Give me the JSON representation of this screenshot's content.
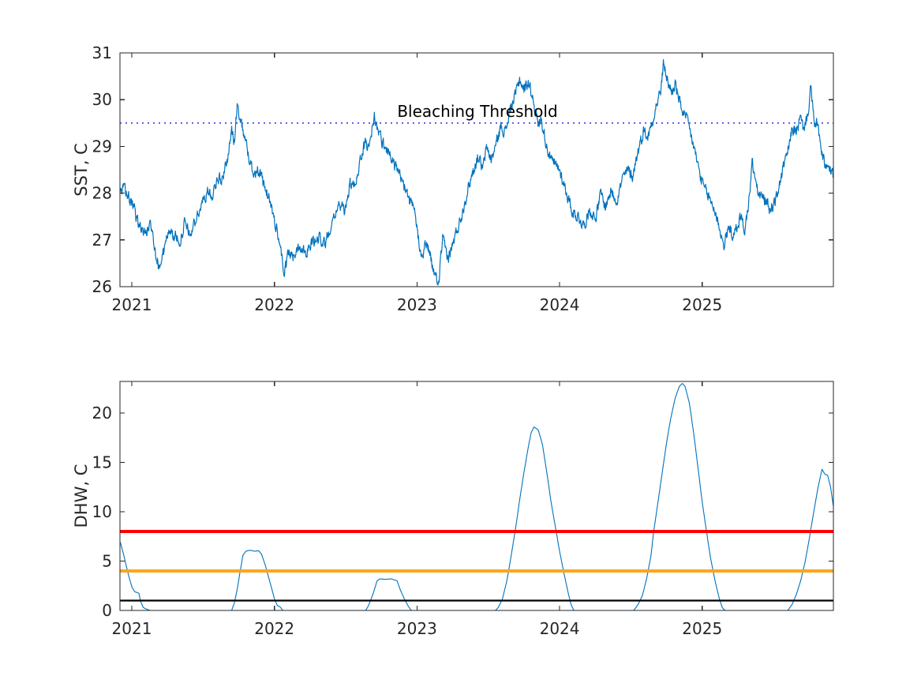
{
  "figure": {
    "background": "#ffffff",
    "axis_color": "#262626",
    "annotation": {
      "text": "Bleaching Threshold",
      "color": "#000000"
    }
  },
  "chart_data": [
    {
      "type": "line",
      "panel": "top",
      "title": "",
      "xlabel": "",
      "ylabel": "SST, C",
      "xlim": [
        2020.917,
        2025.92
      ],
      "ylim": [
        26,
        31
      ],
      "xticks": [
        2021,
        2022,
        2023,
        2024,
        2025
      ],
      "xtick_labels": [
        "2021",
        "2022",
        "2023",
        "2024",
        "2025"
      ],
      "yticks": [
        26,
        27,
        28,
        29,
        30,
        31
      ],
      "grid": false,
      "reference_lines": [
        {
          "name": "bleaching-threshold",
          "value": 29.5,
          "color": "#3b3bf0",
          "style": "dotted",
          "width": 1.6,
          "layer": "under",
          "label": "Bleaching Threshold"
        }
      ],
      "series": [
        {
          "name": "SST",
          "color": "#0072BD",
          "width": 1.2,
          "noise_amplitude": 0.11,
          "anchors": [
            [
              2020.92,
              28.0
            ],
            [
              2020.95,
              28.1
            ],
            [
              2020.98,
              27.9
            ],
            [
              2021.02,
              27.6
            ],
            [
              2021.06,
              27.25
            ],
            [
              2021.1,
              27.15
            ],
            [
              2021.13,
              27.35
            ],
            [
              2021.16,
              26.9
            ],
            [
              2021.19,
              26.4
            ],
            [
              2021.23,
              26.8
            ],
            [
              2021.26,
              27.25
            ],
            [
              2021.3,
              27.05
            ],
            [
              2021.34,
              27.0
            ],
            [
              2021.37,
              27.35
            ],
            [
              2021.41,
              27.1
            ],
            [
              2021.45,
              27.45
            ],
            [
              2021.49,
              27.75
            ],
            [
              2021.53,
              28.05
            ],
            [
              2021.56,
              27.9
            ],
            [
              2021.6,
              28.35
            ],
            [
              2021.63,
              28.25
            ],
            [
              2021.67,
              28.75
            ],
            [
              2021.7,
              29.3
            ],
            [
              2021.72,
              29.1
            ],
            [
              2021.74,
              29.85
            ],
            [
              2021.77,
              29.5
            ],
            [
              2021.8,
              29.1
            ],
            [
              2021.83,
              28.6
            ],
            [
              2021.86,
              28.45
            ],
            [
              2021.89,
              28.5
            ],
            [
              2021.92,
              28.2
            ],
            [
              2021.96,
              27.9
            ],
            [
              2022.0,
              27.45
            ],
            [
              2022.04,
              26.9
            ],
            [
              2022.07,
              26.25
            ],
            [
              2022.1,
              26.75
            ],
            [
              2022.13,
              26.6
            ],
            [
              2022.17,
              26.9
            ],
            [
              2022.22,
              26.75
            ],
            [
              2022.27,
              26.95
            ],
            [
              2022.32,
              27.05
            ],
            [
              2022.36,
              26.9
            ],
            [
              2022.41,
              27.5
            ],
            [
              2022.45,
              27.75
            ],
            [
              2022.49,
              27.6
            ],
            [
              2022.53,
              28.2
            ],
            [
              2022.56,
              28.1
            ],
            [
              2022.6,
              28.7
            ],
            [
              2022.64,
              29.1
            ],
            [
              2022.66,
              28.95
            ],
            [
              2022.7,
              29.65
            ],
            [
              2022.73,
              29.3
            ],
            [
              2022.77,
              29.0
            ],
            [
              2022.8,
              28.9
            ],
            [
              2022.84,
              28.6
            ],
            [
              2022.89,
              28.3
            ],
            [
              2022.94,
              27.9
            ],
            [
              2022.98,
              27.6
            ],
            [
              2023.03,
              26.7
            ],
            [
              2023.07,
              26.95
            ],
            [
              2023.11,
              26.4
            ],
            [
              2023.15,
              26.05
            ],
            [
              2023.18,
              27.0
            ],
            [
              2023.22,
              26.6
            ],
            [
              2023.27,
              27.1
            ],
            [
              2023.31,
              27.5
            ],
            [
              2023.35,
              28.0
            ],
            [
              2023.39,
              28.45
            ],
            [
              2023.43,
              28.8
            ],
            [
              2023.46,
              28.5
            ],
            [
              2023.49,
              29.0
            ],
            [
              2023.52,
              28.7
            ],
            [
              2023.56,
              29.1
            ],
            [
              2023.59,
              29.45
            ],
            [
              2023.62,
              29.3
            ],
            [
              2023.65,
              29.75
            ],
            [
              2023.69,
              30.1
            ],
            [
              2023.72,
              30.45
            ],
            [
              2023.75,
              30.2
            ],
            [
              2023.78,
              30.4
            ],
            [
              2023.82,
              29.95
            ],
            [
              2023.85,
              29.45
            ],
            [
              2023.87,
              29.6
            ],
            [
              2023.91,
              29.0
            ],
            [
              2023.95,
              28.65
            ],
            [
              2024.0,
              28.5
            ],
            [
              2024.04,
              28.1
            ],
            [
              2024.09,
              27.6
            ],
            [
              2024.13,
              27.5
            ],
            [
              2024.17,
              27.3
            ],
            [
              2024.21,
              27.65
            ],
            [
              2024.25,
              27.45
            ],
            [
              2024.29,
              28.0
            ],
            [
              2024.32,
              27.7
            ],
            [
              2024.36,
              28.05
            ],
            [
              2024.4,
              27.85
            ],
            [
              2024.44,
              28.3
            ],
            [
              2024.48,
              28.5
            ],
            [
              2024.51,
              28.35
            ],
            [
              2024.55,
              28.9
            ],
            [
              2024.59,
              29.35
            ],
            [
              2024.62,
              29.2
            ],
            [
              2024.65,
              29.55
            ],
            [
              2024.68,
              29.9
            ],
            [
              2024.71,
              30.2
            ],
            [
              2024.73,
              30.78
            ],
            [
              2024.76,
              30.35
            ],
            [
              2024.79,
              30.15
            ],
            [
              2024.81,
              30.35
            ],
            [
              2024.84,
              29.95
            ],
            [
              2024.87,
              29.7
            ],
            [
              2024.9,
              29.5
            ],
            [
              2024.94,
              29.0
            ],
            [
              2024.97,
              28.6
            ],
            [
              2025.0,
              28.2
            ],
            [
              2025.04,
              27.95
            ],
            [
              2025.08,
              27.7
            ],
            [
              2025.12,
              27.3
            ],
            [
              2025.15,
              26.85
            ],
            [
              2025.19,
              27.3
            ],
            [
              2025.22,
              27.05
            ],
            [
              2025.27,
              27.5
            ],
            [
              2025.3,
              27.2
            ],
            [
              2025.33,
              27.9
            ],
            [
              2025.35,
              28.65
            ],
            [
              2025.39,
              28.0
            ],
            [
              2025.44,
              27.85
            ],
            [
              2025.48,
              27.65
            ],
            [
              2025.52,
              27.9
            ],
            [
              2025.57,
              28.55
            ],
            [
              2025.61,
              29.0
            ],
            [
              2025.63,
              29.4
            ],
            [
              2025.66,
              29.3
            ],
            [
              2025.69,
              29.6
            ],
            [
              2025.71,
              29.35
            ],
            [
              2025.74,
              29.7
            ],
            [
              2025.76,
              30.25
            ],
            [
              2025.79,
              29.4
            ],
            [
              2025.81,
              29.55
            ],
            [
              2025.83,
              28.95
            ],
            [
              2025.86,
              28.6
            ],
            [
              2025.89,
              28.5
            ],
            [
              2025.92,
              28.35
            ]
          ]
        }
      ]
    },
    {
      "type": "line",
      "panel": "bottom",
      "title": "",
      "xlabel": "",
      "ylabel": "DHW, C",
      "xlim": [
        2020.917,
        2025.92
      ],
      "ylim": [
        0,
        23.2
      ],
      "xticks": [
        2021,
        2022,
        2023,
        2024,
        2025
      ],
      "xtick_labels": [
        "2021",
        "2022",
        "2023",
        "2024",
        "2025"
      ],
      "yticks": [
        0,
        5,
        10,
        15,
        20
      ],
      "grid": false,
      "reference_lines": [
        {
          "name": "dhw-alert-level-2",
          "value": 8,
          "color": "#ff0000",
          "style": "solid",
          "width": 4,
          "layer": "over"
        },
        {
          "name": "dhw-alert-level-1",
          "value": 4,
          "color": "#ffa51c",
          "style": "solid",
          "width": 4,
          "layer": "over"
        },
        {
          "name": "dhw-bleaching-watch",
          "value": 1,
          "color": "#000000",
          "style": "solid",
          "width": 2.2,
          "layer": "over"
        }
      ],
      "series": [
        {
          "name": "DHW",
          "color": "#0072BD",
          "width": 1.1,
          "noise_amplitude": 0,
          "anchors": [
            [
              2020.92,
              6.9
            ],
            [
              2020.94,
              5.8
            ],
            [
              2020.96,
              4.6
            ],
            [
              2020.98,
              3.4
            ],
            [
              2021.0,
              2.4
            ],
            [
              2021.02,
              1.9
            ],
            [
              2021.05,
              1.75
            ],
            [
              2021.06,
              1.0
            ],
            [
              2021.08,
              0.3
            ],
            [
              2021.1,
              0.15
            ],
            [
              2021.13,
              0
            ],
            [
              2021.7,
              0
            ],
            [
              2021.72,
              0.8
            ],
            [
              2021.74,
              2.2
            ],
            [
              2021.76,
              4.0
            ],
            [
              2021.78,
              5.6
            ],
            [
              2021.8,
              6.0
            ],
            [
              2021.83,
              6.1
            ],
            [
              2021.86,
              6.0
            ],
            [
              2021.89,
              6.05
            ],
            [
              2021.91,
              5.7
            ],
            [
              2021.94,
              4.4
            ],
            [
              2021.97,
              2.8
            ],
            [
              2022.0,
              1.2
            ],
            [
              2022.02,
              0.5
            ],
            [
              2022.04,
              0.35
            ],
            [
              2022.06,
              0
            ],
            [
              2022.64,
              0
            ],
            [
              2022.66,
              0.5
            ],
            [
              2022.69,
              1.6
            ],
            [
              2022.72,
              3.0
            ],
            [
              2022.74,
              3.2
            ],
            [
              2022.78,
              3.15
            ],
            [
              2022.82,
              3.2
            ],
            [
              2022.86,
              3.0
            ],
            [
              2022.88,
              2.2
            ],
            [
              2022.91,
              1.2
            ],
            [
              2022.94,
              0.4
            ],
            [
              2022.96,
              0
            ],
            [
              2023.55,
              0
            ],
            [
              2023.57,
              0.3
            ],
            [
              2023.6,
              1.2
            ],
            [
              2023.63,
              3.0
            ],
            [
              2023.66,
              5.5
            ],
            [
              2023.69,
              8.2
            ],
            [
              2023.72,
              11.2
            ],
            [
              2023.75,
              14.0
            ],
            [
              2023.78,
              16.5
            ],
            [
              2023.8,
              18.0
            ],
            [
              2023.82,
              18.6
            ],
            [
              2023.85,
              18.3
            ],
            [
              2023.88,
              16.8
            ],
            [
              2023.91,
              14.0
            ],
            [
              2023.94,
              11.0
            ],
            [
              2023.97,
              8.5
            ],
            [
              2024.0,
              6.0
            ],
            [
              2024.03,
              3.8
            ],
            [
              2024.06,
              1.8
            ],
            [
              2024.08,
              0.6
            ],
            [
              2024.1,
              0
            ],
            [
              2024.52,
              0
            ],
            [
              2024.55,
              0.6
            ],
            [
              2024.58,
              1.5
            ],
            [
              2024.61,
              3.2
            ],
            [
              2024.64,
              5.5
            ],
            [
              2024.66,
              8.0
            ],
            [
              2024.69,
              11.0
            ],
            [
              2024.72,
              14.0
            ],
            [
              2024.75,
              17.0
            ],
            [
              2024.78,
              19.5
            ],
            [
              2024.81,
              21.5
            ],
            [
              2024.84,
              22.7
            ],
            [
              2024.86,
              23.0
            ],
            [
              2024.88,
              22.7
            ],
            [
              2024.91,
              21.0
            ],
            [
              2024.94,
              18.0
            ],
            [
              2024.97,
              14.5
            ],
            [
              2025.0,
              11.0
            ],
            [
              2025.03,
              8.0
            ],
            [
              2025.06,
              5.2
            ],
            [
              2025.09,
              3.0
            ],
            [
              2025.12,
              1.2
            ],
            [
              2025.14,
              0.3
            ],
            [
              2025.16,
              0
            ],
            [
              2025.6,
              0
            ],
            [
              2025.63,
              0.6
            ],
            [
              2025.66,
              1.6
            ],
            [
              2025.69,
              3.0
            ],
            [
              2025.72,
              4.8
            ],
            [
              2025.75,
              7.2
            ],
            [
              2025.78,
              9.8
            ],
            [
              2025.81,
              12.3
            ],
            [
              2025.84,
              14.3
            ],
            [
              2025.86,
              13.8
            ],
            [
              2025.88,
              13.7
            ],
            [
              2025.9,
              12.5
            ],
            [
              2025.92,
              10.5
            ]
          ]
        }
      ]
    }
  ]
}
